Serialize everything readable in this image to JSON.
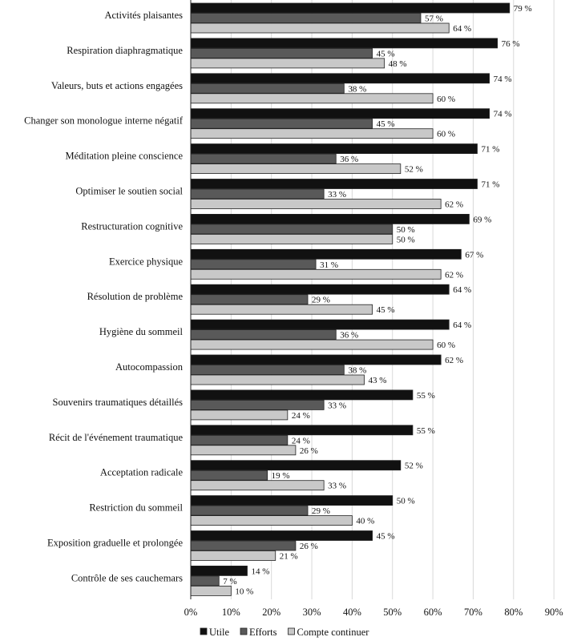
{
  "chart_data": {
    "type": "bar",
    "orientation": "horizontal",
    "categories": [
      "Activités plaisantes",
      "Respiration diaphragmatique",
      "Valeurs, buts et actions engagées",
      "Changer son monologue interne négatif",
      "Méditation pleine conscience",
      "Optimiser le soutien social",
      "Restructuration cognitive",
      "Exercice physique",
      "Résolution de problème",
      "Hygiène du sommeil",
      "Autocompassion",
      "Souvenirs traumatiques détaillés",
      "Récit de l'événement traumatique",
      "Acceptation radicale",
      "Restriction du sommeil",
      "Exposition graduelle et prolongée",
      "Contrôle de ses cauchemars"
    ],
    "series": [
      {
        "name": "Utile",
        "color": "#111111",
        "values": [
          79,
          76,
          74,
          74,
          71,
          71,
          69,
          67,
          64,
          64,
          62,
          55,
          55,
          52,
          50,
          45,
          14
        ],
        "labels": [
          "79 %",
          "76 %",
          "74 %",
          "74 %",
          "71 %",
          "71 %",
          "69 %",
          "67 %",
          "64 %",
          "64 %",
          "62 %",
          "55 %",
          "55 %",
          "52 %",
          "50 %",
          "45 %",
          "14 %"
        ]
      },
      {
        "name": "Efforts",
        "color": "#595959",
        "values": [
          57,
          45,
          38,
          45,
          36,
          33,
          50,
          31,
          29,
          36,
          38,
          33,
          24,
          19,
          29,
          26,
          7
        ],
        "labels": [
          "57 %",
          "45 %",
          "38 %",
          "45 %",
          "36 %",
          "33 %",
          "50 %",
          "31 %",
          "29 %",
          "36 %",
          "38 %",
          "33 %",
          "24 %",
          "19 %",
          "29 %",
          "26 %",
          "7 %"
        ]
      },
      {
        "name": "Compte continuer",
        "color": "#c8c8c8",
        "values": [
          64,
          48,
          60,
          60,
          52,
          62,
          50,
          62,
          45,
          60,
          43,
          24,
          26,
          33,
          40,
          21,
          10
        ],
        "labels": [
          "64 %",
          "48 %",
          "60 %",
          "60 %",
          "52 %",
          "62 %",
          "50 %",
          "62 %",
          "45 %",
          "60 %",
          "43 %",
          "24 %",
          "26 %",
          "33 %",
          "40 %",
          "21 %",
          "10 %"
        ]
      }
    ],
    "xlim": [
      0,
      90
    ],
    "xticks": [
      "0%",
      "10%",
      "20%",
      "30%",
      "40%",
      "50%",
      "60%",
      "70%",
      "80%",
      "90%"
    ],
    "grid": true,
    "legend": "bottom",
    "title": "",
    "xlabel": "",
    "ylabel": ""
  }
}
